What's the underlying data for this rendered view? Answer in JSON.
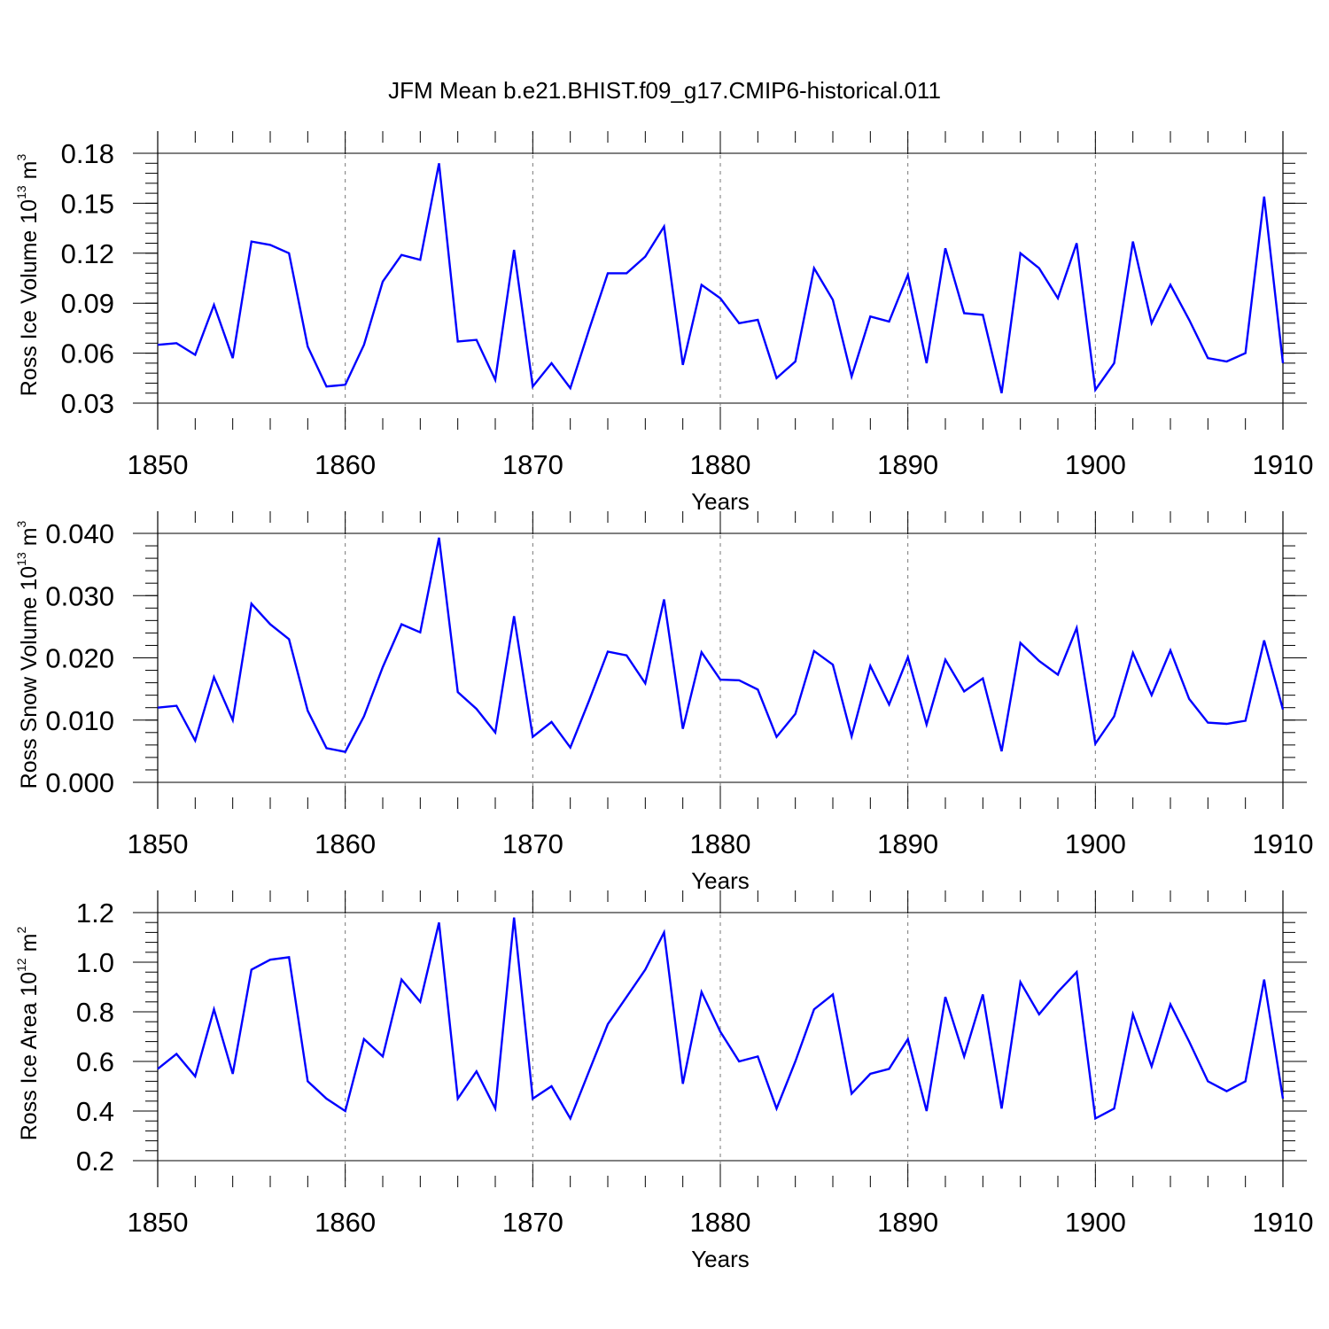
{
  "title": "JFM Mean b.e21.BHIST.f09_g17.CMIP6-historical.011",
  "chart_data": [
    {
      "type": "line",
      "xlabel": "Years",
      "ylabel": {
        "text": "Ross Ice Volume 10",
        "exp": "13",
        "unit": " m",
        "unit_exp": "3"
      },
      "xlim": [
        1850,
        1910
      ],
      "ylim": [
        0.03,
        0.18
      ],
      "x_ticks": [
        1850,
        1860,
        1870,
        1880,
        1890,
        1900,
        1910
      ],
      "x_tick_labels": [
        "1850",
        "1860",
        "1870",
        "1880",
        "1890",
        "1900",
        "1910"
      ],
      "y_ticks": [
        0.03,
        0.06,
        0.09,
        0.12,
        0.15,
        0.18
      ],
      "y_tick_labels": [
        "0.03",
        "0.06",
        "0.09",
        "0.12",
        "0.15",
        "0.18"
      ],
      "y_minor_step": 0.006,
      "vgrid": [
        1860,
        1870,
        1880,
        1890,
        1900
      ],
      "line_color": "#0000ff",
      "x_start": 1850,
      "values": [
        0.065,
        0.066,
        0.059,
        0.089,
        0.057,
        0.127,
        0.125,
        0.12,
        0.064,
        0.04,
        0.041,
        0.065,
        0.103,
        0.119,
        0.116,
        0.174,
        0.067,
        0.068,
        0.044,
        0.122,
        0.04,
        0.054,
        0.039,
        0.074,
        0.108,
        0.108,
        0.118,
        0.136,
        0.053,
        0.101,
        0.093,
        0.078,
        0.08,
        0.045,
        0.055,
        0.111,
        0.092,
        0.046,
        0.082,
        0.079,
        0.107,
        0.054,
        0.123,
        0.084,
        0.083,
        0.036,
        0.12,
        0.111,
        0.093,
        0.126,
        0.038,
        0.054,
        0.127,
        0.078,
        0.101,
        0.08,
        0.057,
        0.055,
        0.06,
        0.154,
        0.054
      ]
    },
    {
      "type": "line",
      "xlabel": "Years",
      "ylabel": {
        "text": "Ross Snow Volume 10",
        "exp": "13",
        "unit": " m",
        "unit_exp": "3"
      },
      "xlim": [
        1850,
        1910
      ],
      "ylim": [
        0.0,
        0.04
      ],
      "x_ticks": [
        1850,
        1860,
        1870,
        1880,
        1890,
        1900,
        1910
      ],
      "x_tick_labels": [
        "1850",
        "1860",
        "1870",
        "1880",
        "1890",
        "1900",
        "1910"
      ],
      "y_ticks": [
        0.0,
        0.01,
        0.02,
        0.03,
        0.04
      ],
      "y_tick_labels": [
        "0.000",
        "0.010",
        "0.020",
        "0.030",
        "0.040"
      ],
      "y_minor_step": 0.002,
      "vgrid": [
        1860,
        1870,
        1880,
        1890,
        1900
      ],
      "line_color": "#0000ff",
      "x_start": 1850,
      "values": [
        0.012,
        0.0123,
        0.0067,
        0.0169,
        0.01,
        0.0287,
        0.0254,
        0.023,
        0.0115,
        0.0055,
        0.0049,
        0.0106,
        0.0185,
        0.0254,
        0.0241,
        0.0393,
        0.0145,
        0.0118,
        0.008,
        0.0267,
        0.0073,
        0.0097,
        0.0056,
        0.0131,
        0.021,
        0.0204,
        0.0159,
        0.0294,
        0.0086,
        0.0209,
        0.0165,
        0.0164,
        0.0149,
        0.0073,
        0.011,
        0.0211,
        0.0189,
        0.0074,
        0.0187,
        0.0125,
        0.0201,
        0.0093,
        0.0197,
        0.0146,
        0.0167,
        0.005,
        0.0224,
        0.0195,
        0.0173,
        0.0248,
        0.0062,
        0.0106,
        0.0208,
        0.014,
        0.0212,
        0.0134,
        0.0096,
        0.0094,
        0.0099,
        0.0228,
        0.0117
      ]
    },
    {
      "type": "line",
      "xlabel": "Years",
      "ylabel": {
        "text": "Ross Ice Area 10",
        "exp": "12",
        "unit": " m",
        "unit_exp": "2"
      },
      "xlim": [
        1850,
        1910
      ],
      "ylim": [
        0.2,
        1.2
      ],
      "x_ticks": [
        1850,
        1860,
        1870,
        1880,
        1890,
        1900,
        1910
      ],
      "x_tick_labels": [
        "1850",
        "1860",
        "1870",
        "1880",
        "1890",
        "1900",
        "1910"
      ],
      "y_ticks": [
        0.2,
        0.4,
        0.6,
        0.8,
        1.0,
        1.2
      ],
      "y_tick_labels": [
        "0.2",
        "0.4",
        "0.6",
        "0.8",
        "1.0",
        "1.2"
      ],
      "y_minor_step": 0.04,
      "vgrid": [
        1860,
        1870,
        1880,
        1890,
        1900
      ],
      "line_color": "#0000ff",
      "x_start": 1850,
      "values": [
        0.57,
        0.63,
        0.54,
        0.81,
        0.55,
        0.97,
        1.01,
        1.02,
        0.52,
        0.45,
        0.4,
        0.69,
        0.62,
        0.93,
        0.84,
        1.16,
        0.45,
        0.56,
        0.41,
        1.18,
        0.45,
        0.5,
        0.37,
        0.56,
        0.75,
        0.86,
        0.97,
        1.12,
        0.51,
        0.88,
        0.72,
        0.6,
        0.62,
        0.41,
        0.6,
        0.81,
        0.87,
        0.47,
        0.55,
        0.57,
        0.69,
        0.4,
        0.86,
        0.62,
        0.87,
        0.41,
        0.92,
        0.79,
        0.88,
        0.96,
        0.37,
        0.41,
        0.79,
        0.58,
        0.83,
        0.68,
        0.52,
        0.48,
        0.52,
        0.93,
        0.45
      ]
    }
  ]
}
